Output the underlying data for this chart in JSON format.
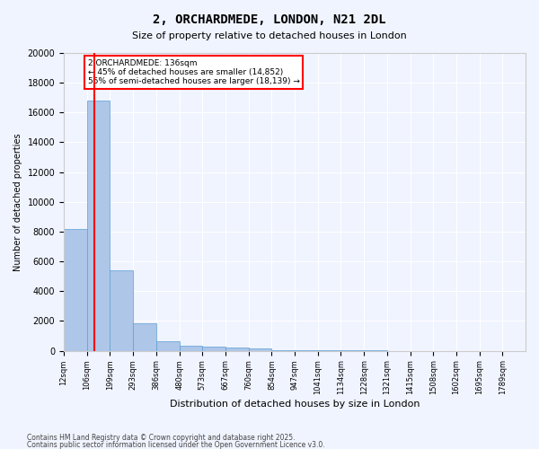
{
  "title": "2, ORCHARDMEDE, LONDON, N21 2DL",
  "subtitle": "Size of property relative to detached houses in London",
  "xlabel": "Distribution of detached houses by size in London",
  "ylabel": "Number of detached properties",
  "bar_color": "#aec6e8",
  "bar_edge_color": "#5a9fd4",
  "background_color": "#f0f4ff",
  "grid_color": "#ffffff",
  "red_line_x": 136,
  "annotation_text": "2 ORCHARDMEDE: 136sqm\n← 45% of detached houses are smaller (14,852)\n55% of semi-detached houses are larger (18,139) →",
  "bin_edges": [
    12,
    106,
    199,
    293,
    386,
    480,
    573,
    667,
    760,
    854,
    947,
    1041,
    1134,
    1228,
    1321,
    1415,
    1508,
    1602,
    1695,
    1789,
    1882
  ],
  "bin_labels": [
    "12sqm",
    "106sqm",
    "199sqm",
    "293sqm",
    "386sqm",
    "480sqm",
    "573sqm",
    "667sqm",
    "760sqm",
    "854sqm",
    "947sqm",
    "1041sqm",
    "1134sqm",
    "1228sqm",
    "1321sqm",
    "1415sqm",
    "1508sqm",
    "1602sqm",
    "1695sqm",
    "1789sqm"
  ],
  "bar_heights": [
    8200,
    16800,
    5400,
    1850,
    650,
    350,
    250,
    200,
    150,
    60,
    30,
    15,
    10,
    8,
    5,
    4,
    3,
    2,
    2,
    1
  ],
  "ylim": [
    0,
    20000
  ],
  "yticks": [
    0,
    2000,
    4000,
    6000,
    8000,
    10000,
    12000,
    14000,
    16000,
    18000,
    20000
  ],
  "footer_line1": "Contains HM Land Registry data © Crown copyright and database right 2025.",
  "footer_line2": "Contains public sector information licensed under the Open Government Licence v3.0."
}
